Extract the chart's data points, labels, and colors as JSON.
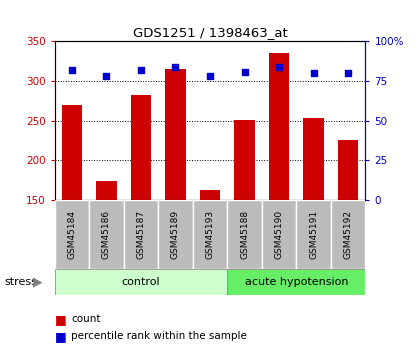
{
  "title": "GDS1251 / 1398463_at",
  "samples": [
    "GSM45184",
    "GSM45186",
    "GSM45187",
    "GSM45189",
    "GSM45193",
    "GSM45188",
    "GSM45190",
    "GSM45191",
    "GSM45192"
  ],
  "count_values": [
    270,
    174,
    283,
    315,
    163,
    251,
    335,
    254,
    226
  ],
  "percentile_values": [
    82,
    78,
    82,
    84,
    78,
    81,
    84,
    80,
    80
  ],
  "ylim_left": [
    150,
    350
  ],
  "ylim_right": [
    0,
    100
  ],
  "yticks_left": [
    150,
    200,
    250,
    300,
    350
  ],
  "yticks_right": [
    0,
    25,
    50,
    75,
    100
  ],
  "ytick_labels_right": [
    "0",
    "25",
    "50",
    "75",
    "100%"
  ],
  "grid_values": [
    200,
    250,
    300
  ],
  "bar_color": "#cc0000",
  "dot_color": "#0000cc",
  "groups": [
    {
      "label": "control",
      "start": 0,
      "end": 5,
      "color": "#ccffcc"
    },
    {
      "label": "acute hypotension",
      "start": 5,
      "end": 9,
      "color": "#66ee66"
    }
  ],
  "stress_label": "stress",
  "legend_count": "count",
  "legend_percentile": "percentile rank within the sample",
  "tick_bg_color": "#bbbbbb",
  "bar_width": 0.6
}
